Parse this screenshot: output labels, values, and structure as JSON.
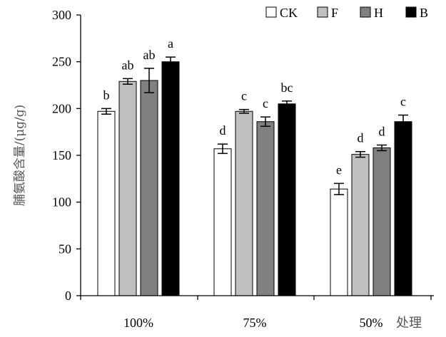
{
  "chart_data": {
    "type": "bar",
    "categories": [
      "100%",
      "75%",
      "50%"
    ],
    "series": [
      {
        "name": "CK",
        "color": "#ffffff",
        "values": [
          197,
          157,
          114
        ],
        "errors": [
          3,
          5,
          6
        ],
        "letters": [
          "b",
          "d",
          "e"
        ]
      },
      {
        "name": "F",
        "color": "#c0c0c0",
        "values": [
          229,
          197,
          151
        ],
        "errors": [
          3,
          2,
          3
        ],
        "letters": [
          "ab",
          "c",
          "d"
        ]
      },
      {
        "name": "H",
        "color": "#808080",
        "values": [
          230,
          186,
          158
        ],
        "errors": [
          13,
          5,
          3
        ],
        "letters": [
          "ab",
          "c",
          "d"
        ]
      },
      {
        "name": "B",
        "color": "#000000",
        "values": [
          250,
          205,
          186
        ],
        "errors": [
          5,
          3,
          7
        ],
        "letters": [
          "a",
          "bc",
          "c"
        ]
      }
    ],
    "ylabel": "脯氨酸含量/(μg/g)",
    "xlabel": "处理",
    "ylim": [
      0,
      300
    ],
    "yticks": [
      "0",
      "50",
      "100",
      "150",
      "200",
      "250",
      "300"
    ],
    "grid": false,
    "legend_position": "top-right"
  }
}
